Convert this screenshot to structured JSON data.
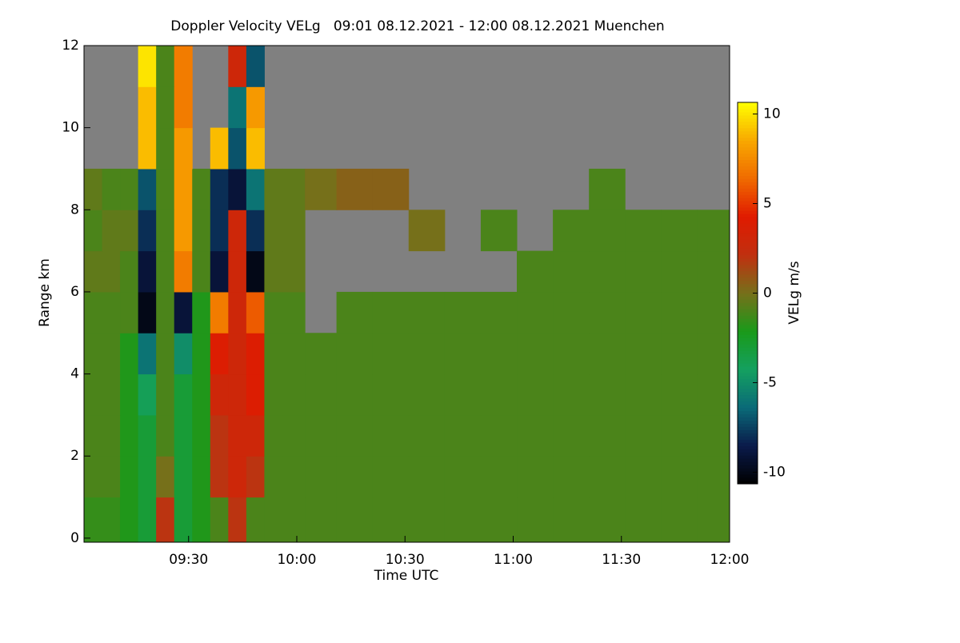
{
  "chart_data": {
    "type": "heatmap",
    "title": "Doppler Velocity VELg   09:01 08.12.2021 - 12:00 08.12.2021 Muenchen",
    "x_label": "Time UTC",
    "y_label": "Range km",
    "colorbar_label": "VELg m/s",
    "xlim": [
      541,
      720
    ],
    "xticks": [
      {
        "value": 570,
        "label": "09:30"
      },
      {
        "value": 600,
        "label": "10:00"
      },
      {
        "value": 630,
        "label": "10:30"
      },
      {
        "value": 660,
        "label": "11:00"
      },
      {
        "value": 690,
        "label": "11:30"
      },
      {
        "value": 720,
        "label": "12:00"
      }
    ],
    "ylim": [
      -0.1,
      12
    ],
    "yticks": [
      0,
      2,
      4,
      6,
      8,
      10,
      12
    ],
    "clim": [
      -10.65,
      10.65
    ],
    "cticks": [
      -10,
      -5,
      0,
      5,
      10
    ],
    "colormap": [
      "#000000",
      "#0a1a4a",
      "#0a6a78",
      "#14a060",
      "#1a9a1a",
      "#76701a",
      "#c03010",
      "#e01a00",
      "#f06a00",
      "#f8a800",
      "#ffff00"
    ],
    "missing_color": "#808080",
    "x": [
      543.5,
      548.5,
      553.5,
      558.5,
      563.5,
      568.5,
      573.5,
      578.5,
      583.5,
      588.5,
      593.5,
      598.5,
      606,
      616,
      626,
      636,
      646,
      656,
      666,
      676,
      686,
      696,
      706,
      716
    ],
    "y": [
      0.5,
      1.5,
      2.5,
      3.5,
      4.5,
      5.5,
      6.5,
      7.5,
      8.5,
      9.5,
      10.5,
      11.5
    ],
    "z": [
      [
        -1.5,
        -1.5,
        -2,
        -3,
        2,
        -3,
        -2,
        -1,
        2,
        -1,
        -1,
        -1,
        -1,
        -1,
        -1,
        -1,
        -1,
        -1,
        -1,
        -1,
        -1,
        -1,
        -1,
        -1
      ],
      [
        -1,
        -1,
        -2,
        -3,
        0,
        -3,
        -2,
        2,
        3,
        2,
        -1,
        -1,
        -1,
        -1,
        -1,
        -1,
        -1,
        -1,
        -1,
        -1,
        -1,
        -1,
        -1,
        -1
      ],
      [
        -1,
        -1,
        -2,
        -3,
        -1,
        -3,
        -2,
        2,
        3,
        3,
        -1,
        -1,
        -1,
        -1,
        -1,
        -1,
        -1,
        -1,
        -1,
        -1,
        -1,
        -1,
        -1,
        -1
      ],
      [
        -1,
        -1,
        -2,
        -4,
        -1,
        -3,
        -2,
        3,
        3,
        4,
        -1,
        -1,
        -1,
        -1,
        -1,
        -1,
        -1,
        -1,
        -1,
        -1,
        -1,
        -1,
        -1,
        -1
      ],
      [
        -1,
        -1,
        -2,
        -6,
        -1,
        -5,
        -2,
        4,
        3,
        4,
        -1,
        -1,
        -1,
        -1,
        -1,
        -1,
        -1,
        -1,
        -1,
        -1,
        -1,
        -1,
        -1,
        -1
      ],
      [
        -1,
        -1,
        -1,
        -10,
        -1,
        -9,
        -2,
        7,
        3,
        6,
        -1,
        -1,
        null,
        -1,
        -1,
        -1,
        -1,
        -1,
        -1,
        -1,
        -1,
        -1,
        -1,
        -1
      ],
      [
        -0.5,
        -0.5,
        -1,
        -9,
        -1,
        7,
        -1,
        -9,
        3,
        -10,
        -0.5,
        -0.5,
        null,
        null,
        null,
        null,
        null,
        null,
        -1,
        -1,
        -1,
        -1,
        -1,
        -1
      ],
      [
        -1,
        -0.5,
        -0.5,
        -8,
        -1,
        8,
        -1,
        -8,
        3,
        -8,
        -0.5,
        -0.5,
        null,
        null,
        null,
        0,
        null,
        -1,
        null,
        -1,
        -1,
        -1,
        -1,
        -1
      ],
      [
        -0.5,
        -1,
        -1,
        -7,
        -1,
        8,
        -1,
        -8,
        -9,
        -6,
        -0.5,
        -0.5,
        0,
        0.5,
        0.5,
        null,
        null,
        null,
        null,
        null,
        -1,
        null,
        null,
        null
      ],
      [
        null,
        null,
        null,
        9,
        -1,
        8,
        null,
        9,
        -7,
        9,
        null,
        null,
        null,
        null,
        null,
        null,
        null,
        null,
        null,
        null,
        null,
        null,
        null,
        null
      ],
      [
        null,
        null,
        null,
        9,
        -1,
        7,
        null,
        null,
        -6,
        8,
        null,
        null,
        null,
        null,
        null,
        null,
        null,
        null,
        null,
        null,
        null,
        null,
        null,
        null
      ],
      [
        null,
        null,
        null,
        10,
        -1,
        7,
        null,
        null,
        3,
        -7,
        null,
        null,
        null,
        null,
        null,
        null,
        null,
        null,
        null,
        null,
        null,
        null,
        null,
        null
      ]
    ]
  }
}
